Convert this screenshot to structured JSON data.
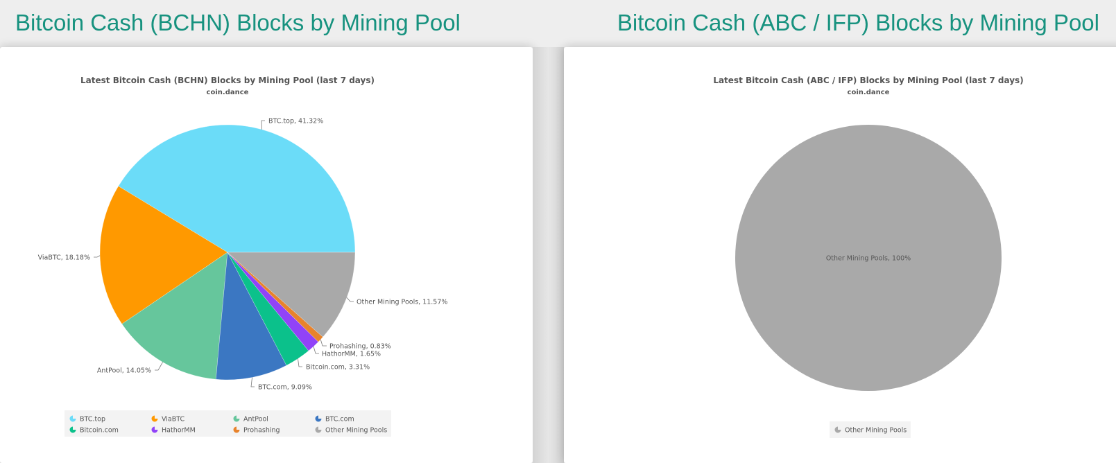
{
  "header": {
    "left_title": "Bitcoin Cash (BCHN) Blocks by Mining Pool",
    "right_title": "Bitcoin Cash (ABC / IFP) Blocks by Mining Pool"
  },
  "chart_data": [
    {
      "type": "pie",
      "title": "Latest Bitcoin Cash (BCHN) Blocks by Mining Pool (last 7 days)",
      "subtitle": "coin.dance",
      "legend_position": "bottom",
      "slices": [
        {
          "name": "BTC.top",
          "value": 41.32,
          "label": "BTC.top, 41.32%",
          "color": "#6bdcf8"
        },
        {
          "name": "ViaBTC",
          "value": 18.18,
          "label": "ViaBTC, 18.18%",
          "color": "#ff9900"
        },
        {
          "name": "AntPool",
          "value": 14.05,
          "label": "AntPool, 14.05%",
          "color": "#66c69c"
        },
        {
          "name": "BTC.com",
          "value": 9.09,
          "label": "BTC.com, 9.09%",
          "color": "#3b77c2"
        },
        {
          "name": "Bitcoin.com",
          "value": 3.31,
          "label": "Bitcoin.com, 3.31%",
          "color": "#0bc18b"
        },
        {
          "name": "HathorMM",
          "value": 1.65,
          "label": "HathorMM, 1.65%",
          "color": "#9143f8"
        },
        {
          "name": "Prohashing",
          "value": 0.83,
          "label": "Prohashing, 0.83%",
          "color": "#e8832c"
        },
        {
          "name": "Other Mining Pools",
          "value": 11.57,
          "label": "Other Mining Pools, 11.57%",
          "color": "#a9a9a9"
        }
      ]
    },
    {
      "type": "pie",
      "title": "Latest Bitcoin Cash (ABC / IFP) Blocks by Mining Pool (last 7 days)",
      "subtitle": "coin.dance",
      "legend_position": "bottom",
      "slices": [
        {
          "name": "Other Mining Pools",
          "value": 100,
          "label": "Other Mining Pools, 100%",
          "color": "#a9a9a9"
        }
      ]
    }
  ]
}
